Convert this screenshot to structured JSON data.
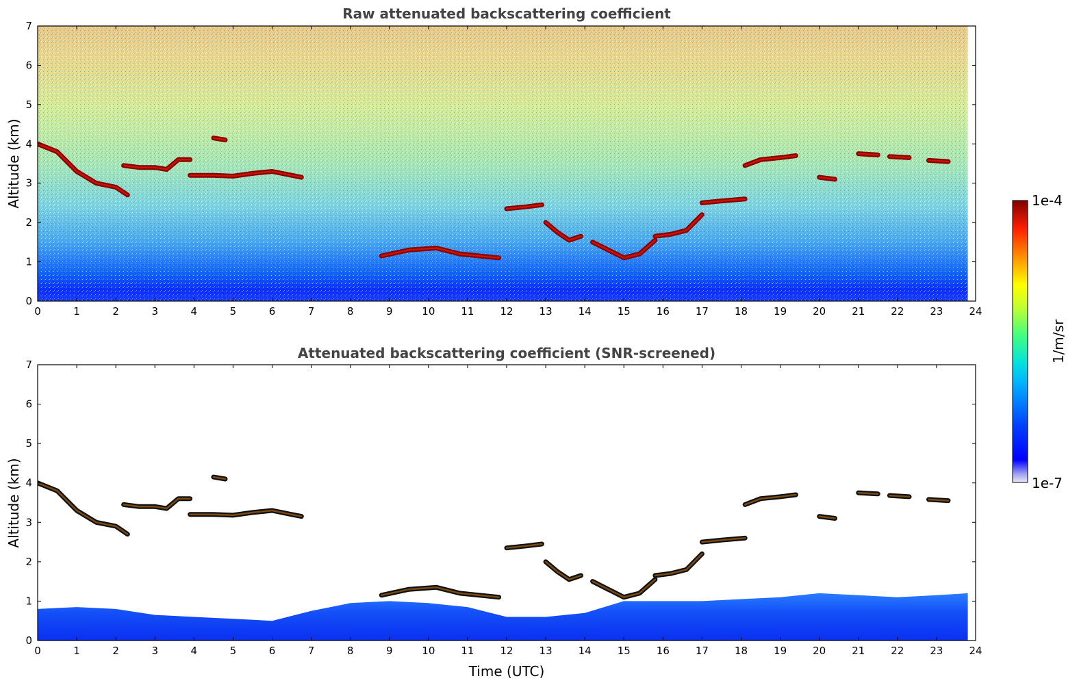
{
  "chart_data": [
    {
      "type": "heatmap",
      "title": "Raw attenuated backscattering coefficient",
      "xlabel": "",
      "ylabel": "Altitude (km)",
      "xlim": [
        0,
        24
      ],
      "ylim": [
        0,
        7
      ],
      "xticks": [
        "0",
        "1",
        "2",
        "3",
        "4",
        "5",
        "6",
        "7",
        "8",
        "9",
        "10",
        "11",
        "12",
        "13",
        "14",
        "15",
        "16",
        "17",
        "18",
        "19",
        "20",
        "21",
        "22",
        "23",
        "24"
      ],
      "yticks": [
        "0",
        "1",
        "2",
        "3",
        "4",
        "5",
        "6",
        "7"
      ],
      "data_end_time": 23.8,
      "cloud_layers": [
        {
          "times": [
            0,
            0.5,
            1.0,
            1.5,
            2.0,
            2.3
          ],
          "altitudes": [
            4.0,
            3.8,
            3.3,
            3.0,
            2.9,
            2.7
          ]
        },
        {
          "times": [
            2.2,
            2.6,
            3.0,
            3.3,
            3.6,
            3.9
          ],
          "altitudes": [
            3.45,
            3.4,
            3.4,
            3.35,
            3.6,
            3.6
          ]
        },
        {
          "times": [
            3.9,
            4.5,
            5.0,
            5.5,
            6.0,
            6.5,
            6.75
          ],
          "altitudes": [
            3.2,
            3.2,
            3.18,
            3.25,
            3.3,
            3.2,
            3.15
          ]
        },
        {
          "times": [
            4.5,
            4.8
          ],
          "altitudes": [
            4.15,
            4.1
          ]
        },
        {
          "times": [
            8.8,
            9.5,
            10.2,
            10.8,
            11.3,
            11.8
          ],
          "altitudes": [
            1.15,
            1.3,
            1.35,
            1.2,
            1.15,
            1.1
          ]
        },
        {
          "times": [
            12.0,
            12.5,
            12.9
          ],
          "altitudes": [
            2.35,
            2.4,
            2.45
          ]
        },
        {
          "times": [
            13.0,
            13.3,
            13.6,
            13.9
          ],
          "altitudes": [
            2.0,
            1.75,
            1.55,
            1.65
          ]
        },
        {
          "times": [
            14.2,
            14.6,
            15.0,
            15.4,
            15.8
          ],
          "altitudes": [
            1.5,
            1.3,
            1.1,
            1.2,
            1.55
          ]
        },
        {
          "times": [
            15.8,
            16.2,
            16.6,
            17.0
          ],
          "altitudes": [
            1.65,
            1.7,
            1.8,
            2.2
          ]
        },
        {
          "times": [
            17.0,
            17.5,
            18.1
          ],
          "altitudes": [
            2.5,
            2.55,
            2.6
          ]
        },
        {
          "times": [
            18.1,
            18.5,
            19.0,
            19.4
          ],
          "altitudes": [
            3.45,
            3.6,
            3.65,
            3.7
          ]
        },
        {
          "times": [
            20.0,
            20.4
          ],
          "altitudes": [
            3.15,
            3.1
          ]
        },
        {
          "times": [
            21.0,
            21.5
          ],
          "altitudes": [
            3.75,
            3.72
          ]
        },
        {
          "times": [
            21.8,
            22.3
          ],
          "altitudes": [
            3.68,
            3.65
          ]
        },
        {
          "times": [
            22.8,
            23.3
          ],
          "altitudes": [
            3.58,
            3.55
          ]
        }
      ]
    },
    {
      "type": "heatmap",
      "title": "Attenuated backscattering coefficient (SNR-screened)",
      "xlabel": "Time (UTC)",
      "ylabel": "Altitude (km)",
      "xlim": [
        0,
        24
      ],
      "ylim": [
        0,
        7
      ],
      "xticks": [
        "0",
        "1",
        "2",
        "3",
        "4",
        "5",
        "6",
        "7",
        "8",
        "9",
        "10",
        "11",
        "12",
        "13",
        "14",
        "15",
        "16",
        "17",
        "18",
        "19",
        "20",
        "21",
        "22",
        "23",
        "24"
      ],
      "yticks": [
        "0",
        "1",
        "2",
        "3",
        "4",
        "5",
        "6",
        "7"
      ],
      "data_end_time": 23.8,
      "boundary_layer_top": {
        "times": [
          0,
          1,
          2,
          3,
          4,
          5,
          6,
          7,
          8,
          9,
          10,
          11,
          12,
          13,
          14,
          15,
          16,
          17,
          18,
          19,
          20,
          21,
          22,
          23,
          23.8
        ],
        "altitudes": [
          0.8,
          0.85,
          0.8,
          0.65,
          0.6,
          0.55,
          0.5,
          0.75,
          0.95,
          1.0,
          0.95,
          0.85,
          0.6,
          0.6,
          0.7,
          1.0,
          1.0,
          1.0,
          1.05,
          1.1,
          1.2,
          1.15,
          1.1,
          1.15,
          1.2
        ]
      }
    }
  ],
  "colorbar": {
    "label": "1/m/sr",
    "max_label": "1e-4",
    "min_label": "1e-7",
    "scale": "log",
    "colormap": "jet"
  }
}
